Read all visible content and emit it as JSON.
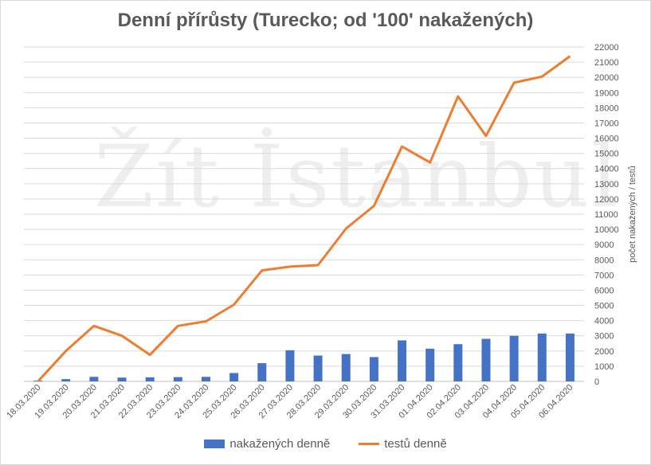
{
  "chart_data": {
    "type": "bar+line",
    "title": "Denní přírůsty (Turecko; od '100' nakažených)",
    "watermark": "Žít İstanbul",
    "ylabel": "počet nakažených / testů",
    "ylim": [
      0,
      22000
    ],
    "ytick_step": 1000,
    "grid": true,
    "legend_position": "bottom",
    "categories": [
      "18.03.2020",
      "19.03.2020",
      "20.03.2020",
      "21.03.2020",
      "22.03.2020",
      "23.03.2020",
      "24.03.2020",
      "25.03.2020",
      "26.03.2020",
      "27.03.2020",
      "28.03.2020",
      "29.03.2020",
      "30.03.2020",
      "31.03.2020",
      "01.04.2020",
      "02.04.2020",
      "03.04.2020",
      "04.04.2020",
      "05.04.2020",
      "06.04.2020"
    ],
    "series": [
      {
        "name": "nakažených denně",
        "type": "bar",
        "color": "#4472c4",
        "values": [
          50,
          150,
          300,
          250,
          270,
          280,
          300,
          550,
          1200,
          2050,
          1700,
          1800,
          1600,
          2700,
          2150,
          2450,
          2800,
          3000,
          3150,
          3150
        ]
      },
      {
        "name": "testů denně",
        "type": "line",
        "color": "#ed7d31",
        "values": [
          0,
          2000,
          3650,
          3000,
          1750,
          3650,
          3950,
          5050,
          7300,
          7550,
          7650,
          10050,
          11550,
          15450,
          14400,
          18750,
          16150,
          19650,
          20050,
          21400
        ]
      }
    ]
  }
}
